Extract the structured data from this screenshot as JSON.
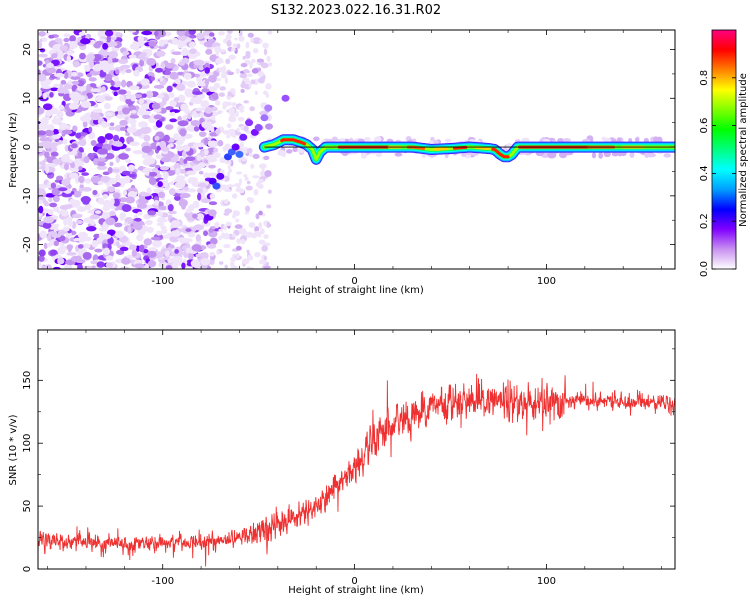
{
  "title": "S132.2023.022.16.31.R02",
  "chart_data": [
    {
      "type": "heatmap",
      "xlabel": "Height of straight line (km)",
      "ylabel": "Frequency (Hz)",
      "xlim": [
        -165,
        167
      ],
      "ylim": [
        -25,
        24
      ],
      "xticks": [
        -100,
        0,
        100
      ],
      "yticks": [
        -20,
        -10,
        0,
        10,
        20
      ],
      "signal_trace": {
        "x": [
          -47,
          -42,
          -37,
          -32,
          -28,
          -25,
          -22,
          -20,
          -18,
          -15,
          -10,
          -5,
          0,
          5,
          10,
          20,
          30,
          40,
          50,
          60,
          70,
          73,
          76,
          78,
          80,
          82,
          85,
          90,
          100,
          110,
          120,
          130,
          140,
          150,
          160,
          167
        ],
        "y": [
          0,
          0.5,
          1.5,
          1.5,
          1.0,
          0.5,
          -0.5,
          -2.5,
          -1.0,
          0,
          0,
          0,
          0,
          0,
          0,
          0,
          0,
          -0.5,
          -0.3,
          0,
          -0.3,
          -0.5,
          -1.5,
          -2,
          -2,
          -1.5,
          0,
          0,
          0,
          0,
          0,
          0,
          0,
          0,
          0,
          0
        ]
      },
      "colorbar": {
        "label": "Normalized spectral amplitude",
        "range": [
          0,
          1
        ],
        "ticks": [
          "0.0",
          "0.2",
          "0.4",
          "0.6",
          "0.8"
        ],
        "colors": [
          "#ffffff",
          "#c890f0",
          "#8000ff",
          "#0000ff",
          "#00a0ff",
          "#00ffff",
          "#00ff80",
          "#00ff00",
          "#80ff00",
          "#ffff00",
          "#ff8000",
          "#ff0000",
          "#ff0080"
        ]
      }
    },
    {
      "type": "line",
      "xlabel": "Height of straight line (km)",
      "ylabel": "SNR (10 * v/v)",
      "xlim": [
        -165,
        167
      ],
      "ylim": [
        0,
        190
      ],
      "xticks": [
        -100,
        0,
        100
      ],
      "yticks": [
        0,
        50,
        100,
        150
      ],
      "color": "#ee3030",
      "trend": {
        "x": [
          -165,
          -120,
          -80,
          -60,
          -50,
          -40,
          -30,
          -20,
          -10,
          0,
          10,
          20,
          30,
          40,
          50,
          60,
          70,
          80,
          90,
          100,
          120,
          140,
          167
        ],
        "y": [
          22,
          20,
          21,
          25,
          30,
          35,
          42,
          50,
          65,
          80,
          100,
          115,
          125,
          130,
          133,
          135,
          133,
          133,
          132,
          132,
          133,
          133,
          133
        ]
      }
    }
  ]
}
